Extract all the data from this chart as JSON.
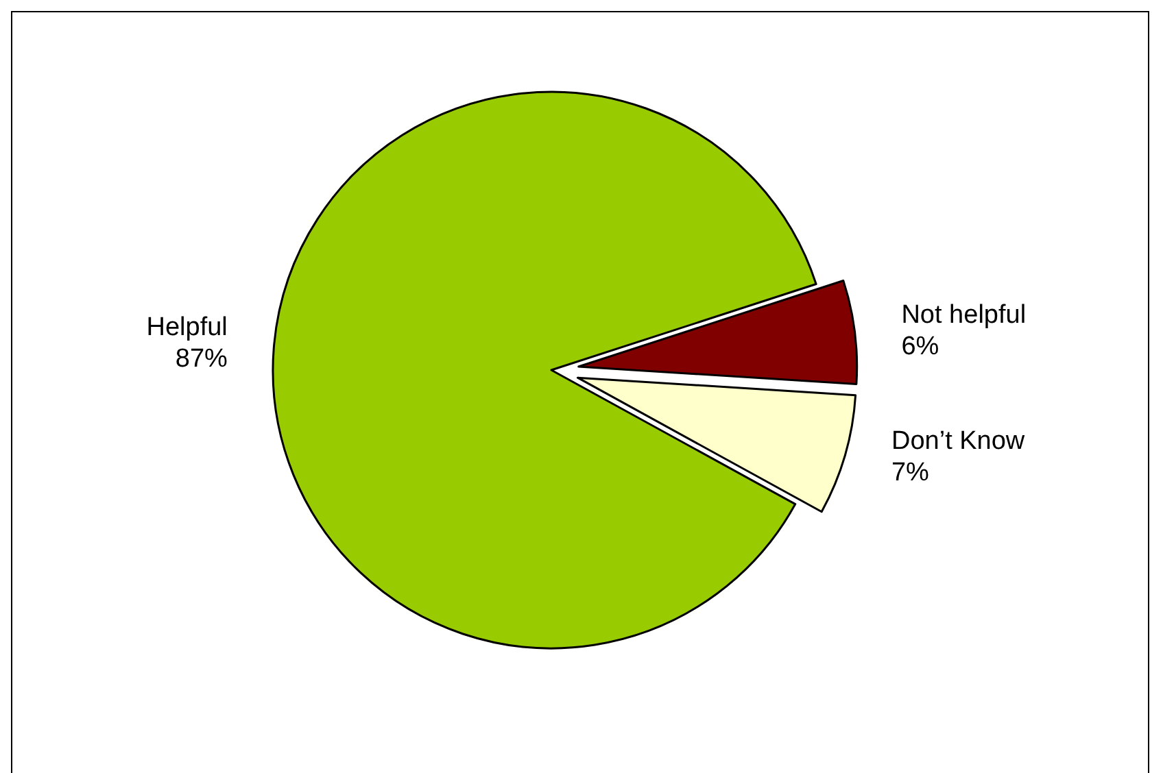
{
  "chart_data": {
    "type": "pie",
    "categories": [
      "Not helpful",
      "Don’t Know",
      "Helpful"
    ],
    "values": [
      6,
      7,
      87
    ],
    "colors": [
      "#800000",
      "#ffffcc",
      "#99cc00"
    ],
    "value_labels": [
      "6%",
      "7%",
      "87%"
    ],
    "legend": false
  }
}
